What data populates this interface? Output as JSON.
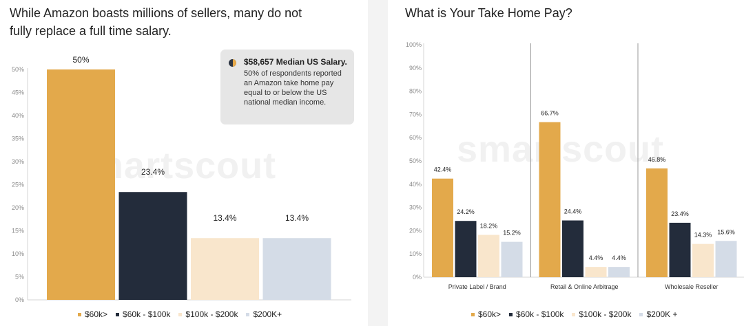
{
  "colors": {
    "s60k_less": "#E3A94B",
    "s60k_100k": "#232C3B",
    "s100k_200k": "#F9E6CC",
    "s200k_plus": "#D4DCE7"
  },
  "watermark": "smartscout",
  "left_chart": {
    "title": "While Amazon boasts millions of sellers, many do not fully replace a full time salary.",
    "callout": {
      "icon": "pie-chart-icon",
      "title": "$58,657 Median US Salary.",
      "body": "50% of respondents reported an Amazon take home pay equal to or below the US national median income."
    }
  },
  "right_chart": {
    "title": "What is Your Take Home Pay?"
  },
  "legend": [
    "$60k>",
    "$60k - $100k",
    "$100k - $200k",
    "$200K +"
  ],
  "legend_left": [
    "$60k>",
    "$60k - $100k",
    "$100k - $200k",
    "$200K+"
  ],
  "chart_data": [
    {
      "type": "bar",
      "title": "While Amazon boasts millions of sellers, many do not fully replace a full time salary.",
      "categories": [
        "$60k>",
        "$60k - $100k",
        "$100k - $200k",
        "$200K+"
      ],
      "values": [
        50,
        23.4,
        13.4,
        13.4
      ],
      "value_labels": [
        "50%",
        "23.4%",
        "13.4%",
        "13.4%"
      ],
      "ylim": [
        0,
        50
      ],
      "yticks": [
        0,
        5,
        10,
        15,
        20,
        25,
        30,
        35,
        40,
        45,
        50
      ],
      "ytick_labels": [
        "0%",
        "5%",
        "10%",
        "15%",
        "20%",
        "25%",
        "30%",
        "35%",
        "40%",
        "45%",
        "50%"
      ],
      "grid": false,
      "legend_position": "bottom"
    },
    {
      "type": "bar",
      "title": "What is Your Take Home Pay?",
      "categories": [
        "Private Label / Brand",
        "Retail & Online Arbitrage",
        "Wholesale Reseller"
      ],
      "series": [
        {
          "name": "$60k>",
          "values": [
            42.4,
            66.7,
            46.8
          ],
          "labels": [
            "42.4%",
            "66.7%",
            "46.8%"
          ]
        },
        {
          "name": "$60k - $100k",
          "values": [
            24.2,
            24.4,
            23.4
          ],
          "labels": [
            "24.2%",
            "24.4%",
            "23.4%"
          ]
        },
        {
          "name": "$100k - $200k",
          "values": [
            18.2,
            4.4,
            14.3
          ],
          "labels": [
            "18.2%",
            "4.4%",
            "14.3%"
          ]
        },
        {
          "name": "$200K +",
          "values": [
            15.2,
            4.4,
            15.6
          ],
          "labels": [
            "15.2%",
            "4.4%",
            "15.6%"
          ]
        }
      ],
      "ylim": [
        0,
        100
      ],
      "yticks": [
        0,
        10,
        20,
        30,
        40,
        50,
        60,
        70,
        80,
        90,
        100
      ],
      "ytick_labels": [
        "0%",
        "10%",
        "20%",
        "30%",
        "40%",
        "50%",
        "60%",
        "70%",
        "80%",
        "90%",
        "100%"
      ],
      "grid": false,
      "legend_position": "bottom"
    }
  ]
}
